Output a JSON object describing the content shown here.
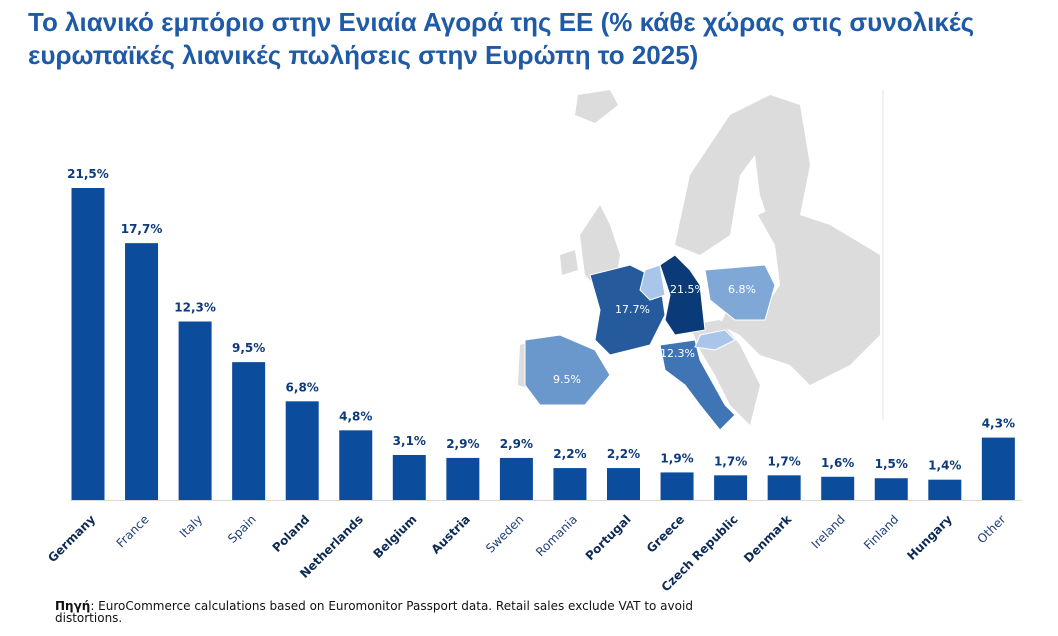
{
  "title": "Το λιανικό εμπόριο στην Ενιαία Αγορά της ΕΕ (% κάθε χώρας στις συνολικές ευρωπαϊκές λιανικές πωλήσεις στην Ευρώπη το 2025)",
  "chart_data": {
    "type": "bar",
    "title": "Το λιανικό εμπόριο στην Ενιαία Αγορά της ΕΕ (% κάθε χώρας στις συνολικές ευρωπαϊκές λιανικές πωλήσεις στην Ευρώπη το 2025)",
    "categories": [
      "Germany",
      "France",
      "Italy",
      "Spain",
      "Poland",
      "Netherlands",
      "Belgium",
      "Austria",
      "Sweden",
      "Romania",
      "Portugal",
      "Greece",
      "Czech Republic",
      "Denmark",
      "Ireland",
      "Finland",
      "Hungary",
      "Other"
    ],
    "values": [
      21.5,
      17.7,
      12.3,
      9.5,
      6.8,
      4.8,
      3.1,
      2.9,
      2.9,
      2.2,
      2.2,
      1.9,
      1.7,
      1.7,
      1.6,
      1.5,
      1.4,
      4.3
    ],
    "data_labels": [
      "21,5%",
      "17,7%",
      "12,3%",
      "9,5%",
      "6,8%",
      "4,8%",
      "3,1%",
      "2,9%",
      "2,9%",
      "2,2%",
      "2,2%",
      "1,9%",
      "1,7%",
      "1,7%",
      "1,6%",
      "1,5%",
      "1,4%",
      "4,3%"
    ],
    "ylim": [
      0,
      22
    ],
    "grid": false,
    "bar_color": "#0b4c9c",
    "xlabel": "",
    "ylabel": ""
  },
  "map": {
    "labels": {
      "germany": "21.5%",
      "france": "17.7%",
      "poland": "6.8%",
      "italy": "12.3%",
      "spain": "9.5%"
    },
    "colors": {
      "germany": "#0a3a78",
      "france": "#255a9c",
      "italy": "#3f74b5",
      "spain": "#6a97cc",
      "poland": "#7fa8d6",
      "light": "#a9c6ea",
      "other": "#dcdcdc"
    }
  },
  "source": {
    "label": "Πηγή",
    "text": ": EuroCommerce calculations based on Euromonitor Passport data. Retail sales exclude VAT to avoid distortions."
  }
}
